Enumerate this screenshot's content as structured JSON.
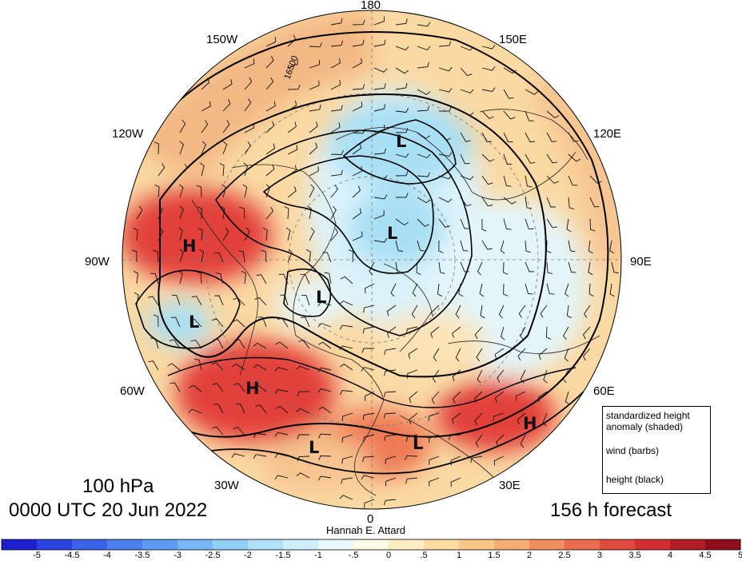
{
  "longitude_labels": {
    "lon_180": "180",
    "lon_150w": "150W",
    "lon_150e": "150E",
    "lon_120w": "120W",
    "lon_120e": "120E",
    "lon_90w": "90W",
    "lon_90e": "90E",
    "lon_60w": "60W",
    "lon_60e": "60E",
    "lon_30w": "30W",
    "lon_30e": "30E",
    "lon_0": "0"
  },
  "contour_label": "16500",
  "pressure_centers": [
    {
      "type": "H",
      "region": "north-america"
    },
    {
      "type": "H",
      "region": "north-atlantic"
    },
    {
      "type": "H",
      "region": "central-asia"
    },
    {
      "type": "L",
      "region": "east-siberia"
    },
    {
      "type": "L",
      "region": "arctic-ocean"
    },
    {
      "type": "L",
      "region": "greenland"
    },
    {
      "type": "L",
      "region": "labrador"
    },
    {
      "type": "L",
      "region": "mid-atlantic"
    },
    {
      "type": "L",
      "region": "mediterranean"
    }
  ],
  "title": {
    "level": "100 hPa",
    "valid_time": "0000 UTC 20 Jun 2022",
    "forecast": "156 h forecast",
    "author": "Hannah E. Attard"
  },
  "legend": {
    "shaded": "standardized height anomaly (shaded)",
    "barbs": "wind (barbs)",
    "height": "height (black)"
  },
  "colorbar": {
    "labels": [
      "-5",
      "-4.5",
      "-4",
      "-3.5",
      "-3",
      "-2.5",
      "-2",
      "-1.5",
      "-1",
      "-.5",
      "0",
      ".5",
      "1",
      "1.5",
      "2",
      "2.5",
      "3",
      "3.5",
      "4",
      "4.5",
      "5"
    ],
    "colors": [
      "#1f1fd2",
      "#2a44e0",
      "#3b63e8",
      "#4b80ee",
      "#5e9cf2",
      "#78b6f5",
      "#93cef7",
      "#b0e1f9",
      "#cdeefb",
      "#e8f8fd",
      "#fdfbe5",
      "#fdefc3",
      "#fbdda2",
      "#f8c889",
      "#f4ad72",
      "#ef8e5d",
      "#e96c4e",
      "#e04a3f",
      "#d22f32",
      "#b31d26",
      "#8e0f1b"
    ]
  },
  "colors": {
    "anomaly_strong_positive": "#e2413a",
    "anomaly_positive": "#f3a872",
    "anomaly_weak_positive": "#fad9a3",
    "anomaly_neutral": "#fdf6dc",
    "anomaly_weak_negative": "#dcf3fb",
    "anomaly_negative": "#a9dff4"
  }
}
